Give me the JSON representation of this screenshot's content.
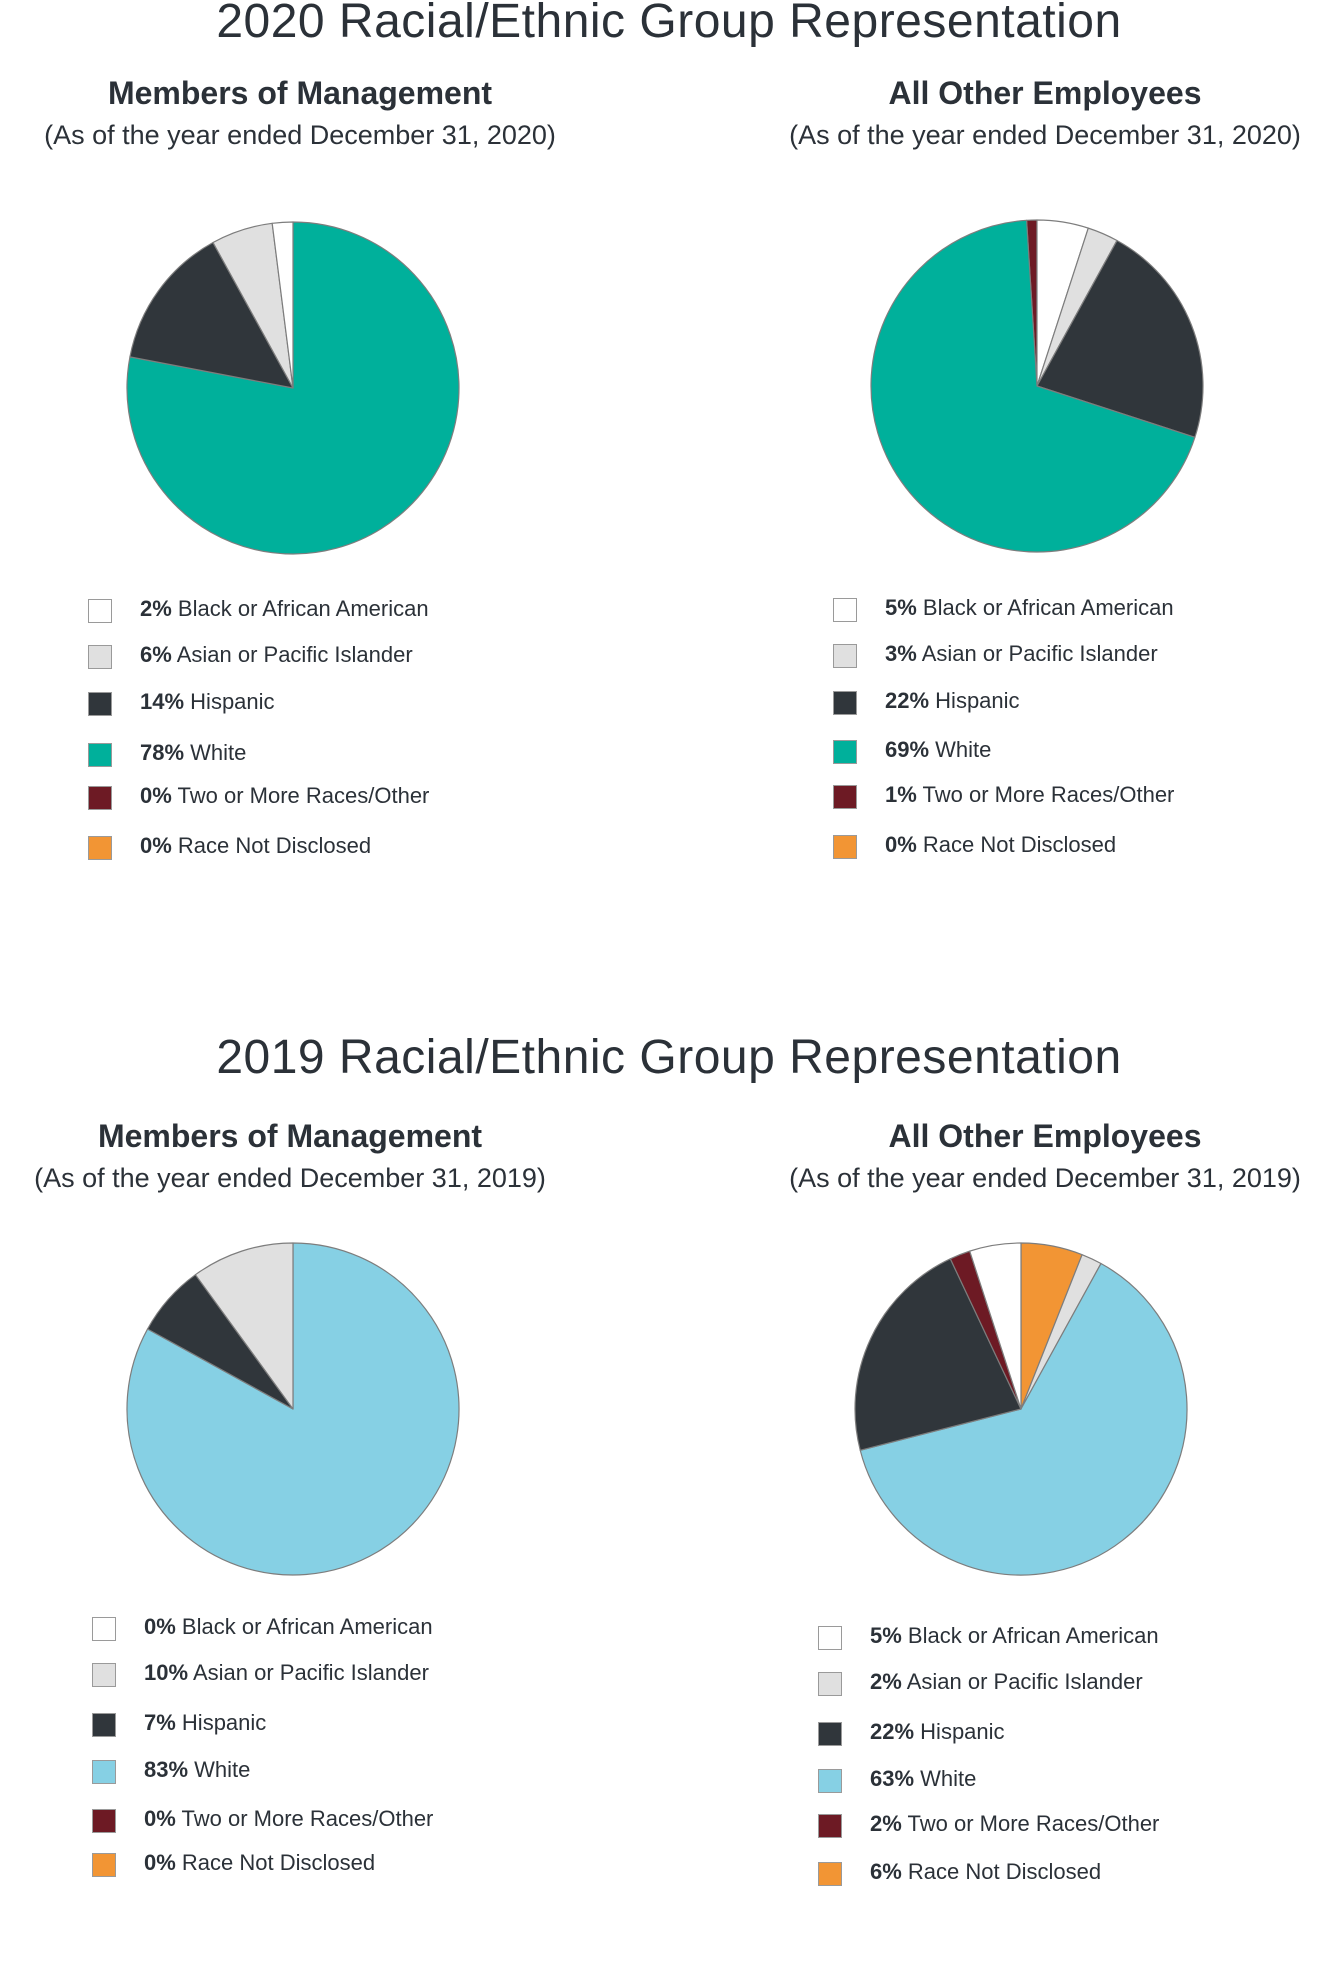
{
  "colors": {
    "black_african_american": "#ffffff",
    "asian_pacific_islander": "#e0e0e0",
    "hispanic": "#30363b",
    "white_2020": "#00b09b",
    "white_2019": "#86d0e4",
    "two_or_more": "#6d1a24",
    "not_disclosed": "#f29534",
    "slice_border": "#7d7d7d"
  },
  "sections": [
    {
      "title": "2020 Racial/Ethnic Group Representation"
    },
    {
      "title": "2019 Racial/Ethnic Group Representation"
    }
  ],
  "chart_data": [
    {
      "type": "pie",
      "title": "Members of Management",
      "subtitle": "(As of the year ended December 31, 2020)",
      "legend": [
        {
          "pct": "2%",
          "label": "Black or African American",
          "color": "#ffffff"
        },
        {
          "pct": "6%",
          "label": "Asian or Pacific Islander",
          "color": "#e0e0e0"
        },
        {
          "pct": "14%",
          "label": "Hispanic",
          "color": "#30363b"
        },
        {
          "pct": "78%",
          "label": "White",
          "color": "#00b09b"
        },
        {
          "pct": "0%",
          "label": "Two or More Races/Other",
          "color": "#6d1a24"
        },
        {
          "pct": "0%",
          "label": "Race Not Disclosed",
          "color": "#f29534"
        }
      ],
      "slices": [
        {
          "label": "White",
          "value": 78,
          "color": "#00b09b"
        },
        {
          "label": "Hispanic",
          "value": 14,
          "color": "#30363b"
        },
        {
          "label": "Asian or Pacific Islander",
          "value": 6,
          "color": "#e0e0e0"
        },
        {
          "label": "Black or African American",
          "value": 2,
          "color": "#ffffff"
        }
      ]
    },
    {
      "type": "pie",
      "title": "All Other Employees",
      "subtitle": "(As of the year ended December 31, 2020)",
      "legend": [
        {
          "pct": "5%",
          "label": "Black or African American",
          "color": "#ffffff"
        },
        {
          "pct": "3%",
          "label": "Asian or Pacific Islander",
          "color": "#e0e0e0"
        },
        {
          "pct": "22%",
          "label": "Hispanic",
          "color": "#30363b"
        },
        {
          "pct": "69%",
          "label": "White",
          "color": "#00b09b"
        },
        {
          "pct": "1%",
          "label": "Two or More Races/Other",
          "color": "#6d1a24"
        },
        {
          "pct": "0%",
          "label": "Race Not Disclosed",
          "color": "#f29534"
        }
      ],
      "slices": [
        {
          "label": "Two or More Races/Other",
          "value": 1,
          "color": "#6d1a24",
          "direction": "ccw"
        },
        {
          "label": "Black or African American",
          "value": 5,
          "color": "#ffffff"
        },
        {
          "label": "Asian or Pacific Islander",
          "value": 3,
          "color": "#e0e0e0"
        },
        {
          "label": "Hispanic",
          "value": 22,
          "color": "#30363b"
        },
        {
          "label": "White",
          "value": 69,
          "color": "#00b09b"
        }
      ],
      "start_slice_ccw": true
    },
    {
      "type": "pie",
      "title": "Members of Management",
      "subtitle": "(As of the year ended December 31, 2019)",
      "legend": [
        {
          "pct": "0%",
          "label": "Black or African American",
          "color": "#ffffff"
        },
        {
          "pct": "10%",
          "label": "Asian or Pacific Islander",
          "color": "#e0e0e0"
        },
        {
          "pct": "7%",
          "label": "Hispanic",
          "color": "#30363b"
        },
        {
          "pct": "83%",
          "label": "White",
          "color": "#86d0e4"
        },
        {
          "pct": "0%",
          "label": "Two or More Races/Other",
          "color": "#6d1a24"
        },
        {
          "pct": "0%",
          "label": "Race Not Disclosed",
          "color": "#f29534"
        }
      ],
      "slices": [
        {
          "label": "White",
          "value": 83,
          "color": "#86d0e4"
        },
        {
          "label": "Hispanic",
          "value": 7,
          "color": "#30363b"
        },
        {
          "label": "Asian or Pacific Islander",
          "value": 10,
          "color": "#e0e0e0"
        }
      ]
    },
    {
      "type": "pie",
      "title": "All Other Employees",
      "subtitle": "(As of the year ended December 31, 2019)",
      "legend": [
        {
          "pct": "5%",
          "label": "Black or African American",
          "color": "#ffffff"
        },
        {
          "pct": "2%",
          "label": "Asian or Pacific Islander",
          "color": "#e0e0e0"
        },
        {
          "pct": "22%",
          "label": "Hispanic",
          "color": "#30363b"
        },
        {
          "pct": "63%",
          "label": "White",
          "color": "#86d0e4"
        },
        {
          "pct": "2%",
          "label": "Two or More Races/Other",
          "color": "#6d1a24"
        },
        {
          "pct": "6%",
          "label": "Race Not Disclosed",
          "color": "#f29534"
        }
      ],
      "slices": [
        {
          "label": "Race Not Disclosed",
          "value": 6,
          "color": "#f29534"
        },
        {
          "label": "Asian or Pacific Islander",
          "value": 2,
          "color": "#e0e0e0"
        },
        {
          "label": "White",
          "value": 63,
          "color": "#86d0e4"
        },
        {
          "label": "Hispanic",
          "value": 22,
          "color": "#30363b"
        },
        {
          "label": "Two or More Races/Other",
          "value": 2,
          "color": "#6d1a24"
        },
        {
          "label": "Black or African American",
          "value": 5,
          "color": "#ffffff"
        }
      ]
    }
  ]
}
